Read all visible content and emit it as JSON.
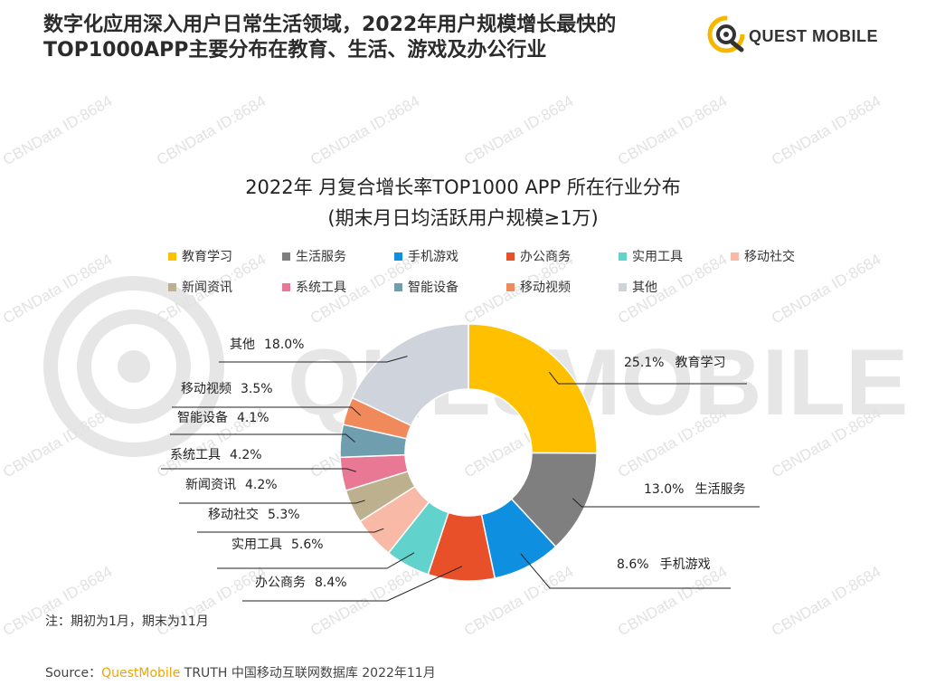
{
  "page": {
    "title_line1": "数字化应用深入用户日常生活领域，2022年用户规模增长最快的",
    "title_line2": "TOP1000APP主要分布在教育、生活、游戏及办公行业",
    "brand": "QUEST MOBILE",
    "watermark": "CBNData ID:8684",
    "note": "注：期初为1月，期末为11月",
    "source_prefix": "Source：",
    "source_brand": "QuestMobile",
    "source_rest": " TRUTH 中国移动互联网数据库 2022年11月"
  },
  "colors": {
    "brand_accent": "#F5B800",
    "brand_text": "#333333",
    "background_logo": "#e6e6e6"
  },
  "chart_data": {
    "type": "pie",
    "donut": true,
    "title_line1": "2022年 月复合增长率TOP1000 APP 所在行业分布",
    "title_line2": "(期末月日均活跃用户规模≥1万)",
    "legend_position": "top",
    "slices": [
      {
        "label": "教育学习",
        "value": 25.1,
        "display": "25.1%",
        "color": "#FFC000"
      },
      {
        "label": "生活服务",
        "value": 13.0,
        "display": "13.0%",
        "color": "#7F7F7F"
      },
      {
        "label": "手机游戏",
        "value": 8.6,
        "display": "8.6%",
        "color": "#0F8FE0"
      },
      {
        "label": "办公商务",
        "value": 8.4,
        "display": "8.4%",
        "color": "#E8502A"
      },
      {
        "label": "实用工具",
        "value": 5.6,
        "display": "5.6%",
        "color": "#62D2CC"
      },
      {
        "label": "移动社交",
        "value": 5.3,
        "display": "5.3%",
        "color": "#F8B9A6"
      },
      {
        "label": "新闻资讯",
        "value": 4.2,
        "display": "4.2%",
        "color": "#BCB08E"
      },
      {
        "label": "系统工具",
        "value": 4.2,
        "display": "4.2%",
        "color": "#E87894"
      },
      {
        "label": "智能设备",
        "value": 4.1,
        "display": "4.1%",
        "color": "#6F9EAF"
      },
      {
        "label": "移动视频",
        "value": 3.5,
        "display": "3.5%",
        "color": "#F08A5A"
      },
      {
        "label": "其他",
        "value": 18.0,
        "display": "18.0%",
        "color": "#CED3DC"
      }
    ]
  }
}
